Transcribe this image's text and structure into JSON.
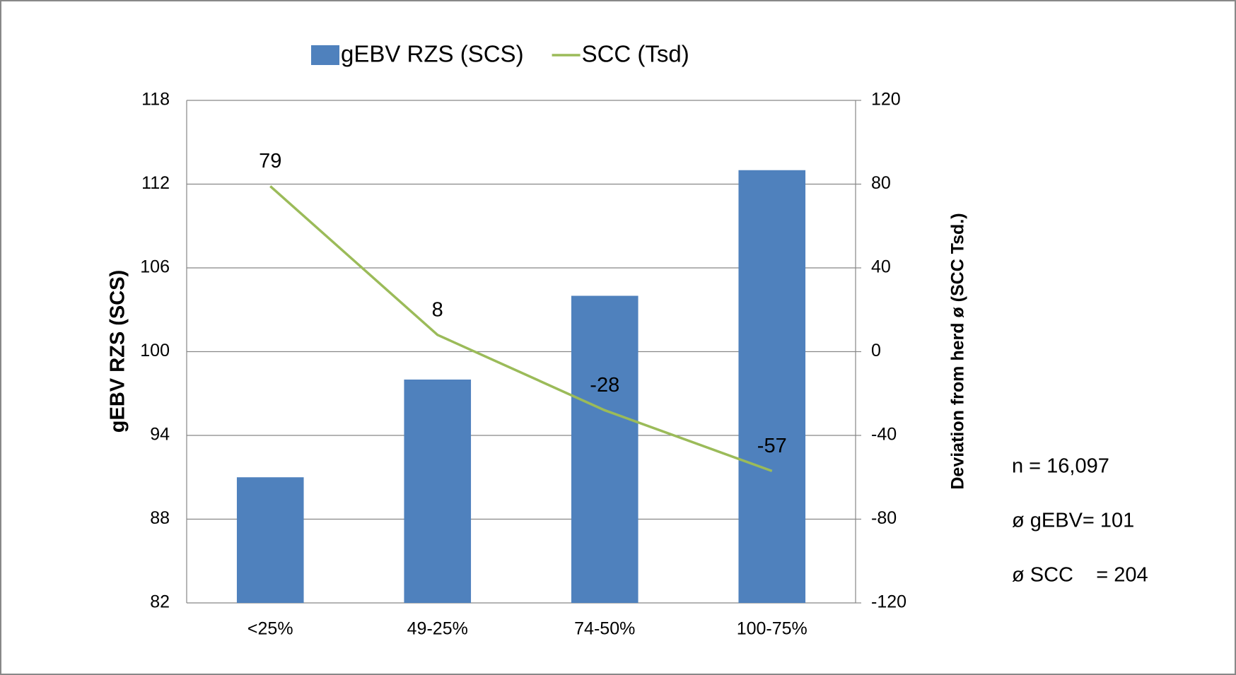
{
  "chart_data": {
    "type": "bar_line",
    "categories": [
      "<25%",
      "49-25%",
      "74-50%",
      "100-75%"
    ],
    "series": [
      {
        "name": "gEBV RZS (SCS)",
        "color": "#4f81bd",
        "type": "bar",
        "values": [
          91,
          98,
          104,
          113
        ]
      },
      {
        "name": "SCC (Tsd)",
        "color": "#9bbb59",
        "type": "line",
        "axis": "y2",
        "values": [
          79,
          8,
          -28,
          -57
        ]
      }
    ],
    "y_label": "gEBV RZS (SCS)",
    "y2_label": "Deviation from herd ø (SCC Tsd.)",
    "ylim": [
      82,
      118
    ],
    "yticks": [
      82,
      88,
      94,
      100,
      106,
      112,
      118
    ],
    "y2lim": [
      -120,
      120
    ],
    "y2ticks": [
      -120,
      -80,
      -40,
      0,
      40,
      80,
      120
    ],
    "grid": true,
    "legend": "top",
    "annotations": [
      "n = 16,097",
      "ø gEBV= 101",
      "ø SCC    = 204"
    ]
  }
}
